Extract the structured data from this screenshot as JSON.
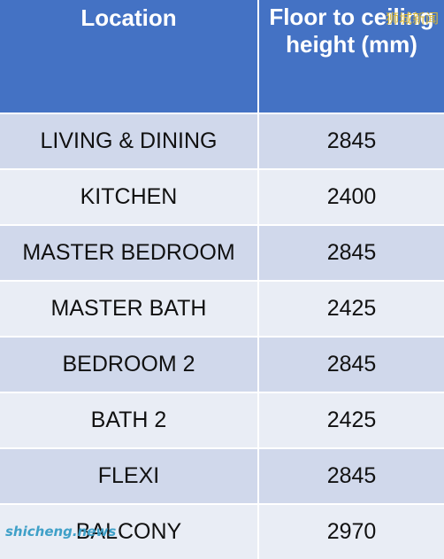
{
  "table": {
    "headers": [
      "Location",
      "Floor to ceiling height (mm)"
    ],
    "rows": [
      [
        "LIVING & DINING",
        "2845"
      ],
      [
        "KITCHEN",
        "2400"
      ],
      [
        "MASTER BEDROOM",
        "2845"
      ],
      [
        "MASTER BATH",
        "2425"
      ],
      [
        "BEDROOM 2",
        "2845"
      ],
      [
        "BATH 2",
        "2425"
      ],
      [
        "FLEXI",
        "2845"
      ],
      [
        "BALCONY",
        "2970"
      ]
    ]
  },
  "watermarks": {
    "top_right": "狮城新闻",
    "bottom_left": "shicheng.news"
  },
  "colors": {
    "header_bg": "#4472c4",
    "row_dark": "#d0d8eb",
    "row_light": "#e9edf5"
  }
}
